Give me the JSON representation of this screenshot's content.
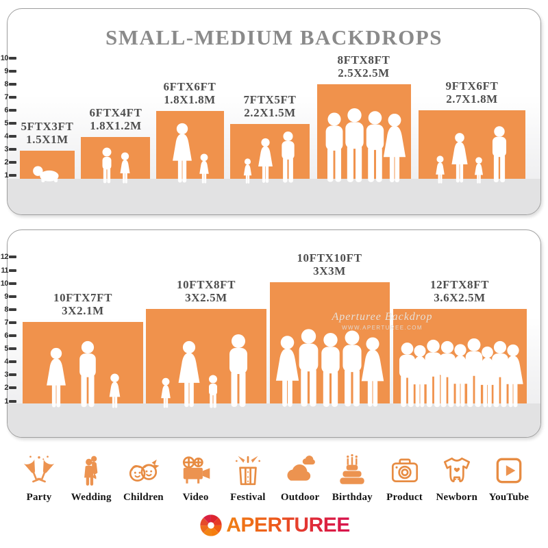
{
  "top_panel": {
    "title": "SMALL-MEDIUM BACKDROPS",
    "ruler": {
      "min": 1,
      "max": 10
    },
    "bars": [
      {
        "size_ft": "5FTX3FT",
        "size_m": "1.5X1M"
      },
      {
        "size_ft": "6FTX4FT",
        "size_m": "1.8X1.2M"
      },
      {
        "size_ft": "6FTX6FT",
        "size_m": "1.8X1.8M"
      },
      {
        "size_ft": "7FTX5FT",
        "size_m": "2.2X1.5M"
      },
      {
        "size_ft": "8FTX8FT",
        "size_m": "2.5X2.5M"
      },
      {
        "size_ft": "9FTX6FT",
        "size_m": "2.7X1.8M"
      }
    ]
  },
  "bottom_panel": {
    "ruler": {
      "min": 1,
      "max": 12
    },
    "watermark": {
      "line1": "Aperturee Backdrop",
      "line2": "WWW.APERTUREE.COM"
    },
    "bars": [
      {
        "size_ft": "10FTX7FT",
        "size_m": "3X2.1M"
      },
      {
        "size_ft": "10FTX8FT",
        "size_m": "3X2.5M"
      },
      {
        "size_ft": "10FTX10FT",
        "size_m": "3X3M"
      },
      {
        "size_ft": "12FTX8FT",
        "size_m": "3.6X2.5M"
      }
    ]
  },
  "chart_data": [
    {
      "type": "bar",
      "title": "SMALL-MEDIUM BACKDROPS (upper panel)",
      "categories": [
        "5FTX3FT",
        "6FTX4FT",
        "6FTX6FT",
        "7FTX5FT",
        "8FTX8FT",
        "9FTX6FT"
      ],
      "values_height_ft": [
        3,
        4,
        6,
        5,
        8,
        6
      ],
      "values_width_ft": [
        5,
        6,
        6,
        7,
        8,
        9
      ],
      "values_meters": [
        "1.5X1M",
        "1.8X1.2M",
        "1.8X1.8M",
        "2.2X1.5M",
        "2.5X2.5M",
        "2.7X1.8M"
      ],
      "ylabel": "feet ruler",
      "ylim": [
        1,
        10
      ],
      "grid": false,
      "legend": "none"
    },
    {
      "type": "bar",
      "title": "lower panel",
      "categories": [
        "10FTX7FT",
        "10FTX8FT",
        "10FTX10FT",
        "12FTX8FT"
      ],
      "values_height_ft": [
        7,
        8,
        10,
        8
      ],
      "values_width_ft": [
        10,
        10,
        10,
        12
      ],
      "values_meters": [
        "3X2.1M",
        "3X2.5M",
        "3X3M",
        "3.6X2.5M"
      ],
      "ylabel": "feet ruler",
      "ylim": [
        1,
        12
      ],
      "grid": false,
      "legend": "none"
    }
  ],
  "categories": [
    {
      "label": "Party",
      "icon": "party-icon"
    },
    {
      "label": "Wedding",
      "icon": "wedding-icon"
    },
    {
      "label": "Children",
      "icon": "children-icon"
    },
    {
      "label": "Video",
      "icon": "video-icon"
    },
    {
      "label": "Festival",
      "icon": "festival-icon"
    },
    {
      "label": "Outdoor",
      "icon": "outdoor-icon"
    },
    {
      "label": "Birthday",
      "icon": "birthday-icon"
    },
    {
      "label": "Product",
      "icon": "product-icon"
    },
    {
      "label": "Newborn",
      "icon": "newborn-icon"
    },
    {
      "label": "YouTube",
      "icon": "youtube-icon"
    }
  ],
  "logo": {
    "text": "APERTUREE"
  },
  "colors": {
    "backdrop_orange": "#f0924c",
    "icon_orange": "#e78c43",
    "title_gray": "#8a8a8a",
    "label_gray": "#4d4d4d",
    "floor_gray": "#e2e2e3",
    "logo_orange": "#f08014",
    "logo_red": "#d6114e"
  }
}
